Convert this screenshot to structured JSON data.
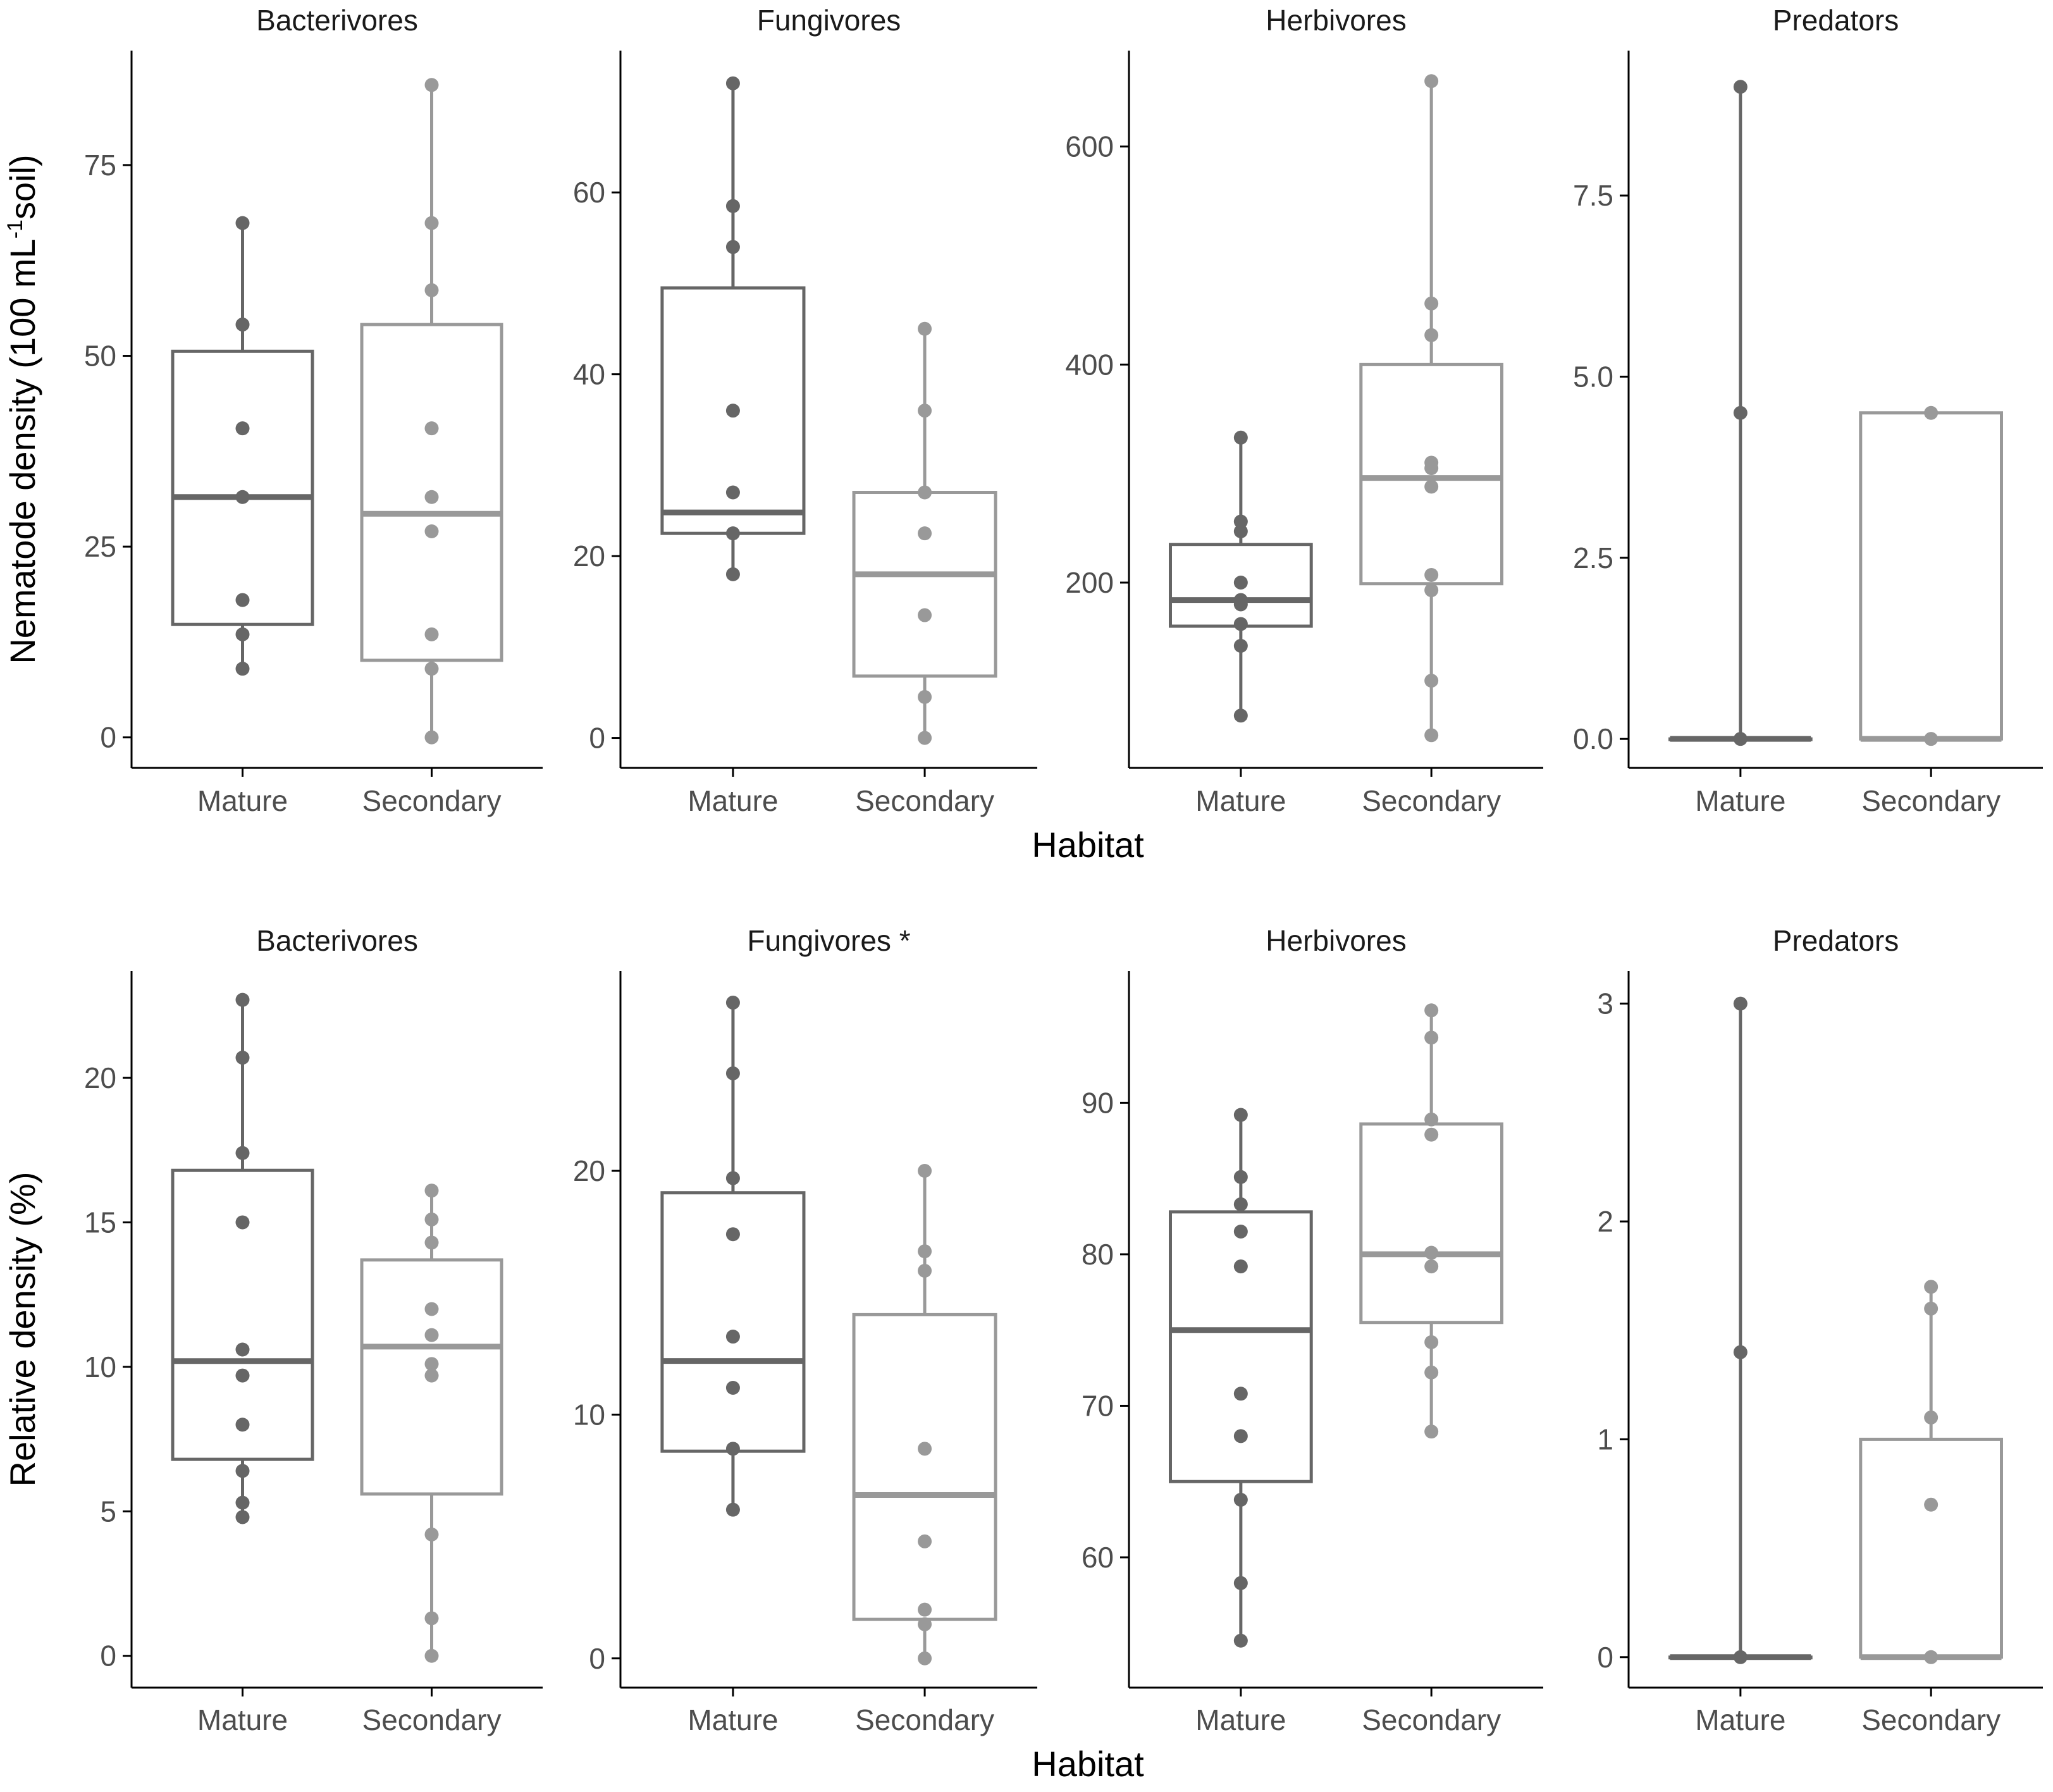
{
  "chart_data": {
    "type": "boxplot",
    "colors": {
      "Mature": "#666666",
      "Secondary": "#999999",
      "axis": "#000000"
    },
    "categories": [
      "Mature",
      "Secondary"
    ],
    "rows": [
      {
        "ylabel_parts": [
          "Nematode density (100 mL",
          "-1",
          "soil)"
        ],
        "xlabel": "Habitat",
        "panels": [
          {
            "title": "Bacterivores",
            "ylim": [
              -4,
              90
            ],
            "ticks": [
              0,
              25,
              50,
              75
            ],
            "tick_labels": [
              "0",
              "25",
              "50",
              "75"
            ],
            "groups": [
              {
                "name": "Mature",
                "box": {
                  "q1": 14.8,
                  "median": 31.5,
                  "q3": 50.6
                },
                "points": [
                  67.4,
                  54.1,
                  40.5,
                  31.5,
                  18.0,
                  13.5,
                  9.0
                ]
              },
              {
                "name": "Secondary",
                "box": {
                  "q1": 10.1,
                  "median": 29.3,
                  "q3": 54.1
                },
                "points": [
                  85.5,
                  67.4,
                  58.6,
                  40.5,
                  31.5,
                  27.0,
                  13.5,
                  9.0,
                  0.0
                ]
              }
            ]
          },
          {
            "title": "Fungivores",
            "ylim": [
              -3.3,
              75.6
            ],
            "ticks": [
              0,
              20,
              40,
              60
            ],
            "tick_labels": [
              "0",
              "20",
              "40",
              "60"
            ],
            "groups": [
              {
                "name": "Mature",
                "box": {
                  "q1": 22.5,
                  "median": 24.8,
                  "q3": 49.5
                },
                "points": [
                  72.0,
                  58.5,
                  54.0,
                  36.0,
                  27.0,
                  22.5,
                  18.0
                ]
              },
              {
                "name": "Secondary",
                "box": {
                  "q1": 6.8,
                  "median": 18.0,
                  "q3": 27.0
                },
                "points": [
                  45.0,
                  36.0,
                  27.0,
                  22.5,
                  13.5,
                  4.5,
                  0.0
                ]
              }
            ]
          },
          {
            "title": "Herbivores",
            "ylim": [
              30,
              688
            ],
            "ticks": [
              200,
              400,
              600
            ],
            "tick_labels": [
              "200",
              "400",
              "600"
            ],
            "groups": [
              {
                "name": "Mature",
                "box": {
                  "q1": 160,
                  "median": 184,
                  "q3": 235
                },
                "points": [
                  333,
                  256,
                  247,
                  200,
                  184,
                  180,
                  162,
                  142,
                  78
                ]
              },
              {
                "name": "Secondary",
                "box": {
                  "q1": 199,
                  "median": 296,
                  "q3": 400
                },
                "points": [
                  660,
                  456,
                  427,
                  310,
                  305,
                  288,
                  207,
                  193,
                  110,
                  60
                ]
              }
            ]
          },
          {
            "title": "Predators",
            "ylim": [
              -0.4,
              9.5
            ],
            "ticks": [
              0,
              2.5,
              5,
              7.5
            ],
            "tick_labels": [
              "0.0",
              "2.5",
              "5.0",
              "7.5"
            ],
            "groups": [
              {
                "name": "Mature",
                "box": {
                  "q1": 0,
                  "median": 0,
                  "q3": 0
                },
                "points": [
                  9.0,
                  4.5,
                  0.0
                ]
              },
              {
                "name": "Secondary",
                "box": {
                  "q1": 0,
                  "median": 0,
                  "q3": 4.5
                },
                "points": [
                  4.5,
                  0.0
                ]
              }
            ]
          }
        ]
      },
      {
        "ylabel_parts": [
          "Relative density (%)"
        ],
        "xlabel": "Habitat",
        "panels": [
          {
            "title": "Bacterivores",
            "ylim": [
              -1.1,
              23.7
            ],
            "ticks": [
              0,
              5,
              10,
              15,
              20
            ],
            "tick_labels": [
              "0",
              "5",
              "10",
              "15",
              "20"
            ],
            "groups": [
              {
                "name": "Mature",
                "box": {
                  "q1": 6.8,
                  "median": 10.2,
                  "q3": 16.8
                },
                "points": [
                  22.7,
                  20.7,
                  17.4,
                  15.0,
                  10.6,
                  9.7,
                  8.0,
                  6.4,
                  5.3,
                  4.8
                ]
              },
              {
                "name": "Secondary",
                "box": {
                  "q1": 5.6,
                  "median": 10.7,
                  "q3": 13.7
                },
                "points": [
                  16.1,
                  15.1,
                  14.3,
                  12.0,
                  11.1,
                  10.1,
                  9.7,
                  4.2,
                  1.3,
                  0.0
                ]
              }
            ]
          },
          {
            "title": "Fungivores *",
            "ylim": [
              -1.2,
              28.2
            ],
            "ticks": [
              0,
              10,
              20
            ],
            "tick_labels": [
              "0",
              "10",
              "20"
            ],
            "groups": [
              {
                "name": "Mature",
                "box": {
                  "q1": 8.5,
                  "median": 12.2,
                  "q3": 19.1
                },
                "points": [
                  26.9,
                  24.0,
                  19.7,
                  17.4,
                  13.2,
                  11.1,
                  8.6,
                  6.1
                ]
              },
              {
                "name": "Secondary",
                "box": {
                  "q1": 1.6,
                  "median": 6.7,
                  "q3": 14.1
                },
                "points": [
                  20.0,
                  16.7,
                  15.9,
                  8.6,
                  4.8,
                  2.0,
                  1.4,
                  0.0
                ]
              }
            ]
          },
          {
            "title": "Herbivores",
            "ylim": [
              51.4,
              98.7
            ],
            "ticks": [
              60,
              70,
              80,
              90
            ],
            "tick_labels": [
              "60",
              "70",
              "80",
              "90"
            ],
            "groups": [
              {
                "name": "Mature",
                "box": {
                  "q1": 65.0,
                  "median": 75.0,
                  "q3": 82.8
                },
                "points": [
                  89.2,
                  85.1,
                  83.3,
                  81.5,
                  79.2,
                  70.8,
                  68.0,
                  63.8,
                  58.3,
                  54.5
                ]
              },
              {
                "name": "Secondary",
                "box": {
                  "q1": 75.5,
                  "median": 80.0,
                  "q3": 88.6
                },
                "points": [
                  96.1,
                  94.3,
                  88.9,
                  87.9,
                  80.1,
                  79.2,
                  74.2,
                  72.2,
                  68.3
                ]
              }
            ]
          },
          {
            "title": "Predators",
            "ylim": [
              -0.14,
              3.15
            ],
            "ticks": [
              0,
              1,
              2,
              3
            ],
            "tick_labels": [
              "0",
              "1",
              "2",
              "3"
            ],
            "groups": [
              {
                "name": "Mature",
                "box": {
                  "q1": 0,
                  "median": 0,
                  "q3": 0
                },
                "points": [
                  3.0,
                  1.4,
                  0.0
                ]
              },
              {
                "name": "Secondary",
                "box": {
                  "q1": 0,
                  "median": 0,
                  "q3": 1.0
                },
                "points": [
                  1.7,
                  1.6,
                  1.1,
                  0.7,
                  0.0
                ]
              }
            ]
          }
        ]
      }
    ]
  }
}
